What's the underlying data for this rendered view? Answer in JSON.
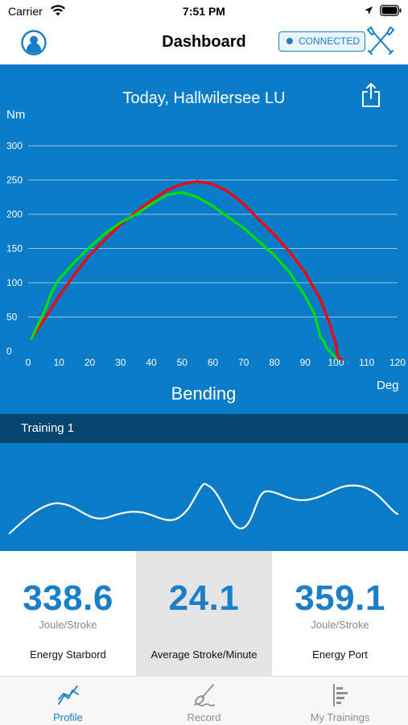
{
  "status_bar": {
    "carrier": "Carrier",
    "time": "7:51 PM"
  },
  "nav": {
    "title": "Dashboard",
    "connection_badge": "CONNECTED",
    "accent_color": "#1a7fc8"
  },
  "chart_data": {
    "type": "line",
    "title": "Today, Hallwilersee LU",
    "xlabel": "Bending",
    "x_unit": "Deg",
    "y_unit": "Nm",
    "xlim": [
      0,
      120
    ],
    "ylim": [
      0,
      300
    ],
    "x_ticks": [
      0,
      10,
      20,
      30,
      40,
      50,
      60,
      70,
      80,
      90,
      100,
      110,
      120
    ],
    "y_ticks": [
      0,
      50,
      100,
      150,
      200,
      250,
      300
    ],
    "grid": true,
    "background_color": "#0a7bc6",
    "series": [
      {
        "color": "#ff0000",
        "x": [
          1,
          5,
          10,
          15,
          20,
          25,
          30,
          35,
          40,
          45,
          50,
          55,
          60,
          65,
          70,
          75,
          80,
          85,
          90,
          95,
          98,
          100,
          100.5,
          101,
          102
        ],
        "y": [
          18,
          45,
          80,
          112,
          140,
          163,
          185,
          203,
          220,
          235,
          244,
          248,
          244,
          233,
          215,
          192,
          170,
          145,
          115,
          75,
          40,
          10,
          -5,
          -10,
          -12
        ]
      },
      {
        "color": "#00e000",
        "x": [
          1,
          5,
          8,
          10,
          15,
          20,
          25,
          30,
          35,
          40,
          45,
          50,
          55,
          60,
          65,
          70,
          75,
          80,
          85,
          90,
          93,
          95,
          96,
          97,
          98,
          99,
          100
        ],
        "y": [
          18,
          55,
          90,
          105,
          130,
          152,
          172,
          188,
          200,
          215,
          228,
          232,
          225,
          212,
          196,
          180,
          160,
          140,
          115,
          80,
          55,
          20,
          15,
          5,
          0,
          -5,
          -10
        ]
      }
    ]
  },
  "training": {
    "label": "Training 1"
  },
  "stats": [
    {
      "value": "338.6",
      "unit": "Joule/Stroke",
      "label": "Energy Starbord"
    },
    {
      "value": "24.1",
      "unit": "",
      "label": "Average Stroke/Minute"
    },
    {
      "value": "359.1",
      "unit": "Joule/Stroke",
      "label": "Energy Port"
    }
  ],
  "tabs": [
    {
      "label": "Profile",
      "icon": "profile-chart-icon",
      "active": true
    },
    {
      "label": "Record",
      "icon": "record-paddle-icon",
      "active": false
    },
    {
      "label": "My Trainings",
      "icon": "trainings-list-icon",
      "active": false
    }
  ]
}
